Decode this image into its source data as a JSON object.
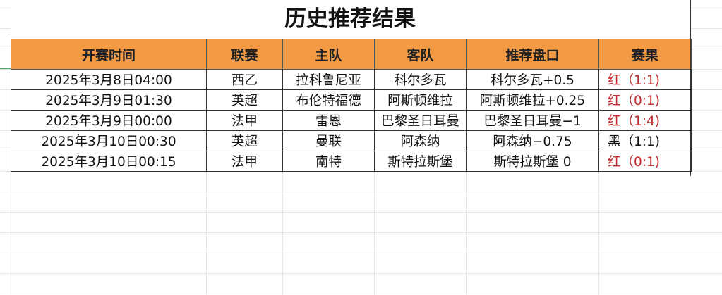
{
  "title": "历史推荐结果",
  "headers": [
    "开赛时间",
    "联赛",
    "主队",
    "客队",
    "推荐盘口",
    "赛果"
  ],
  "rows": [
    {
      "time": "2025年3月8日04:00",
      "league": "西乙",
      "home": "拉科鲁尼亚",
      "away": "科尔多瓦",
      "pick": "科尔多瓦+0.5",
      "result": "红（1:1)",
      "status": "red"
    },
    {
      "time": "2025年3月9日01:30",
      "league": "英超",
      "home": "布伦特福德",
      "away": "阿斯顿维拉",
      "pick": "阿斯顿维拉+0.25",
      "result": "红（0:1)",
      "status": "red"
    },
    {
      "time": "2025年3月9日00:00",
      "league": "法甲",
      "home": "雷恩",
      "away": "巴黎圣日耳曼",
      "pick": "巴黎圣日耳曼−1",
      "result": "红（1:4)",
      "status": "red"
    },
    {
      "time": "2025年3月10日00:30",
      "league": "英超",
      "home": "曼联",
      "away": "阿森纳",
      "pick": "阿森纳−0.75",
      "result": "黑（1:1)",
      "status": "black"
    },
    {
      "time": "2025年3月10日00:15",
      "league": "法甲",
      "home": "南特",
      "away": "斯特拉斯堡",
      "pick": "斯特拉斯堡 0",
      "result": "红（0:1)",
      "status": "red"
    }
  ],
  "colors": {
    "header_bg": "#f39a45",
    "red": "#c0282a"
  }
}
